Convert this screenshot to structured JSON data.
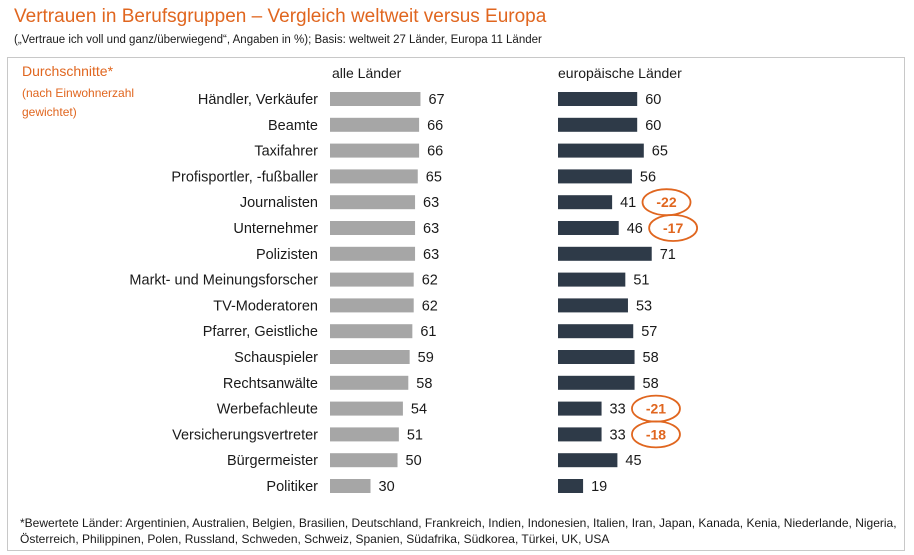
{
  "title": "Vertrauen in Berufsgruppen  – Vergleich weltweit versus Europa",
  "subtitle": "(„Vertraue ich voll und ganz/überwiegend“,  Angaben in %); Basis: weltweit 27 Länder, Europa 11 Länder",
  "averages_label": "Durchschnitte*",
  "averages_note_1": "(nach Einwohnerzahl",
  "averages_note_2": "gewichtet)",
  "footnote": "*Bewertete Länder: Argentinien, Australien, Belgien, Brasilien, Deutschland, Frankreich, Indien, Indonesien, Italien, Iran, Japan, Kanada, Kenia, Niederlande, Nigeria, Österreich, Philippinen, Polen, Russland, Schweden, Schweiz, Spanien, Südafrika, Südkorea, Türkei, UK, USA",
  "colors": {
    "world_bar": "#a6a6a6",
    "europe_bar": "#2e3a48",
    "accent": "#e0661f",
    "text": "#1a1a1a"
  },
  "chart_data": {
    "type": "bar",
    "orientation": "horizontal",
    "categories": [
      "Händler, Verkäufer",
      "Beamte",
      "Taxifahrer",
      "Profisportler, -fußballer",
      "Journalisten",
      "Unternehmer",
      "Polizisten",
      "Markt- und Meinungsforscher",
      "TV-Moderatoren",
      "Pfarrer, Geistliche",
      "Schauspieler",
      "Rechtsanwälte",
      "Werbefachleute",
      "Versicherungsvertreter",
      "Bürgermeister",
      "Politiker"
    ],
    "series": [
      {
        "name": "alle Länder",
        "values": [
          67,
          66,
          66,
          65,
          63,
          63,
          63,
          62,
          62,
          61,
          59,
          58,
          54,
          51,
          50,
          30
        ]
      },
      {
        "name": "europäische Länder",
        "values": [
          60,
          60,
          65,
          56,
          41,
          46,
          71,
          51,
          53,
          57,
          58,
          58,
          33,
          33,
          45,
          19
        ]
      }
    ],
    "differences": [
      {
        "category": "Journalisten",
        "label": "-22"
      },
      {
        "category": "Unternehmer",
        "label": "-17"
      },
      {
        "category": "Werbefachleute",
        "label": "-21"
      },
      {
        "category": "Versicherungsvertreter",
        "label": "-18"
      }
    ],
    "unit": "%",
    "xlim": [
      0,
      100
    ]
  }
}
